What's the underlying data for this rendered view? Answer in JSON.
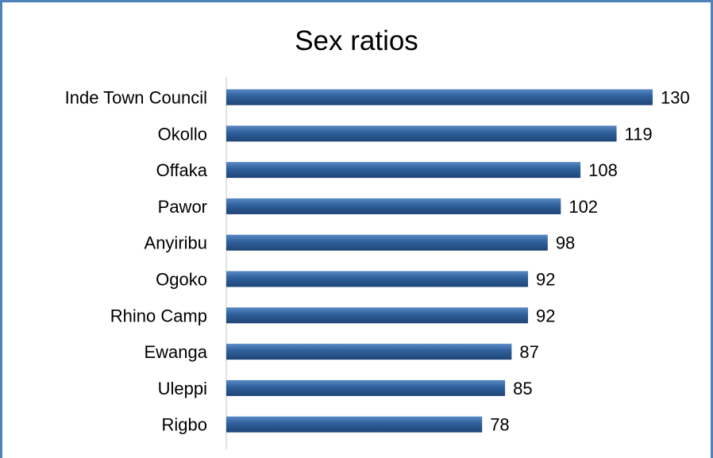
{
  "chart_data": {
    "type": "bar",
    "orientation": "horizontal",
    "title": "Sex ratios",
    "categories": [
      "Inde Town Council",
      "Okollo",
      "Offaka",
      "Pawor",
      "Anyiribu",
      "Ogoko",
      "Rhino Camp",
      "Ewanga",
      "Uleppi",
      "Rigbo"
    ],
    "values": [
      130,
      119,
      108,
      102,
      98,
      92,
      92,
      87,
      85,
      78
    ],
    "xlim": [
      0,
      140
    ],
    "grid": false,
    "legend": "none",
    "bar_color": "#2f5f9a",
    "bar_color_light": "#5a8ac6"
  }
}
